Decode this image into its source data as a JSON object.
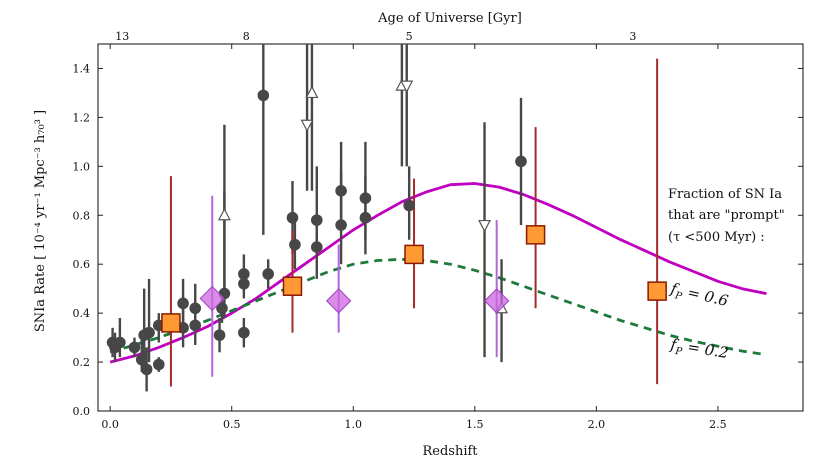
{
  "chart_data": {
    "type": "scatter",
    "xlabel": "Redshift",
    "ylabel": "SNIa Rate [ 10⁻⁴ yr⁻¹ Mpc⁻³ h₇₀³ ]",
    "top_axis_label": "Age of Universe [Gyr]",
    "xlim": [
      -0.05,
      2.85
    ],
    "ylim": [
      0.0,
      1.5
    ],
    "x_ticks": [
      0.0,
      0.5,
      1.0,
      1.5,
      2.0,
      2.5
    ],
    "x_tick_labels": [
      "0.0",
      "0.5",
      "1.0",
      "1.5",
      "2.0",
      "2.5"
    ],
    "y_ticks": [
      0.0,
      0.2,
      0.4,
      0.6,
      0.8,
      1.0,
      1.2,
      1.4
    ],
    "y_tick_labels": [
      "0.0",
      "0.2",
      "0.4",
      "0.6",
      "0.8",
      "1.0",
      "1.2",
      "1.4"
    ],
    "top_ticks": [
      {
        "z": 0.05,
        "label": "13"
      },
      {
        "z": 0.56,
        "label": "8"
      },
      {
        "z": 1.23,
        "label": "5"
      },
      {
        "z": 2.15,
        "label": "3"
      }
    ],
    "legend_note": [
      "Fraction of SN Ia",
      "that are \"prompt\"",
      "(τ <500 Myr) :"
    ],
    "colors": {
      "circles": "#474747",
      "circle_errors": "#474747",
      "triangles_edge": "#555555",
      "diamonds": "#cc66e0",
      "diamond_errors": "#b266dd",
      "squares": "#ff9933",
      "square_edge": "#8b1a00",
      "square_errors": "#a52a2a",
      "fp06_curve": "#c000c0",
      "fp02_curve": "#1e7a3a"
    },
    "series": [
      {
        "name": "literature rates (circles)",
        "marker": "circle",
        "points": [
          {
            "x": 0.01,
            "y": 0.28,
            "lo": 0.22,
            "hi": 0.34
          },
          {
            "x": 0.02,
            "y": 0.26,
            "lo": 0.2,
            "hi": 0.32
          },
          {
            "x": 0.04,
            "y": 0.28,
            "lo": 0.22,
            "hi": 0.38
          },
          {
            "x": 0.1,
            "y": 0.26,
            "lo": 0.22,
            "hi": 0.3
          },
          {
            "x": 0.13,
            "y": 0.21,
            "lo": 0.16,
            "hi": 0.3
          },
          {
            "x": 0.14,
            "y": 0.31,
            "lo": 0.2,
            "hi": 0.5
          },
          {
            "x": 0.15,
            "y": 0.17,
            "lo": 0.08,
            "hi": 0.26
          },
          {
            "x": 0.16,
            "y": 0.32,
            "lo": 0.2,
            "hi": 0.54
          },
          {
            "x": 0.2,
            "y": 0.19,
            "lo": 0.16,
            "hi": 0.22
          },
          {
            "x": 0.2,
            "y": 0.35,
            "lo": 0.28,
            "hi": 0.4
          },
          {
            "x": 0.3,
            "y": 0.44,
            "lo": 0.36,
            "hi": 0.54
          },
          {
            "x": 0.3,
            "y": 0.34,
            "lo": 0.26,
            "hi": 0.42
          },
          {
            "x": 0.35,
            "y": 0.42,
            "lo": 0.34,
            "hi": 0.52
          },
          {
            "x": 0.35,
            "y": 0.35,
            "lo": 0.27,
            "hi": 0.42
          },
          {
            "x": 0.45,
            "y": 0.31,
            "lo": 0.24,
            "hi": 0.38
          },
          {
            "x": 0.46,
            "y": 0.42,
            "lo": 0.36,
            "hi": 0.48
          },
          {
            "x": 0.47,
            "y": 0.48,
            "lo": 0.38,
            "hi": 0.9
          },
          {
            "x": 0.55,
            "y": 0.56,
            "lo": 0.5,
            "hi": 0.64
          },
          {
            "x": 0.55,
            "y": 0.52,
            "lo": 0.46,
            "hi": 0.58
          },
          {
            "x": 0.55,
            "y": 0.32,
            "lo": 0.26,
            "hi": 0.38
          },
          {
            "x": 0.63,
            "y": 1.29,
            "lo": 0.72,
            "hi": 1.5
          },
          {
            "x": 0.65,
            "y": 0.56,
            "lo": 0.5,
            "hi": 0.62
          },
          {
            "x": 0.75,
            "y": 0.79,
            "lo": 0.64,
            "hi": 0.94
          },
          {
            "x": 0.76,
            "y": 0.68,
            "lo": 0.58,
            "hi": 0.8
          },
          {
            "x": 0.85,
            "y": 0.78,
            "lo": 0.66,
            "hi": 1.0
          },
          {
            "x": 0.85,
            "y": 0.67,
            "lo": 0.54,
            "hi": 0.78
          },
          {
            "x": 0.95,
            "y": 0.9,
            "lo": 0.78,
            "hi": 1.1
          },
          {
            "x": 0.95,
            "y": 0.76,
            "lo": 0.6,
            "hi": 0.98
          },
          {
            "x": 1.05,
            "y": 0.87,
            "lo": 0.7,
            "hi": 1.1
          },
          {
            "x": 1.05,
            "y": 0.79,
            "lo": 0.64,
            "hi": 0.96
          },
          {
            "x": 1.23,
            "y": 0.84,
            "lo": 0.7,
            "hi": 1.0
          },
          {
            "x": 1.69,
            "y": 1.02,
            "lo": 0.76,
            "hi": 1.28
          }
        ]
      },
      {
        "name": "upward triangles",
        "marker": "triangle-up",
        "points": [
          {
            "x": 0.47,
            "y": 0.8,
            "lo": 0.5,
            "hi": 1.17
          },
          {
            "x": 0.83,
            "y": 1.3,
            "lo": 0.9,
            "hi": 1.5
          },
          {
            "x": 1.2,
            "y": 1.33,
            "lo": 1.0,
            "hi": 1.5
          },
          {
            "x": 1.61,
            "y": 0.42,
            "lo": 0.2,
            "hi": 0.62
          }
        ]
      },
      {
        "name": "downward triangles",
        "marker": "triangle-down",
        "points": [
          {
            "x": 0.81,
            "y": 1.17,
            "lo": 0.9,
            "hi": 1.5
          },
          {
            "x": 1.22,
            "y": 1.33,
            "lo": 1.0,
            "hi": 1.5
          },
          {
            "x": 1.54,
            "y": 0.76,
            "lo": 0.22,
            "hi": 1.18
          }
        ]
      },
      {
        "name": "diamonds",
        "marker": "diamond",
        "points": [
          {
            "x": 0.42,
            "y": 0.46,
            "lo": 0.14,
            "hi": 0.88
          },
          {
            "x": 0.94,
            "y": 0.45,
            "lo": 0.32,
            "hi": 0.68
          },
          {
            "x": 1.59,
            "y": 0.45,
            "lo": 0.22,
            "hi": 0.78
          }
        ]
      },
      {
        "name": "squares",
        "marker": "square",
        "points": [
          {
            "x": 0.25,
            "y": 0.36,
            "lo": 0.1,
            "hi": 0.96
          },
          {
            "x": 0.75,
            "y": 0.51,
            "lo": 0.32,
            "hi": 0.74
          },
          {
            "x": 1.25,
            "y": 0.64,
            "lo": 0.42,
            "hi": 0.95
          },
          {
            "x": 1.75,
            "y": 0.72,
            "lo": 0.42,
            "hi": 1.16
          },
          {
            "x": 2.25,
            "y": 0.49,
            "lo": 0.11,
            "hi": 1.44
          }
        ]
      }
    ],
    "curves": [
      {
        "name": "fP=0.6 model",
        "label_prefix": "f",
        "label_sub": "P",
        "label_suffix": " = 0.6",
        "style": "solid",
        "x": [
          0.0,
          0.1,
          0.2,
          0.3,
          0.4,
          0.5,
          0.6,
          0.7,
          0.8,
          0.9,
          1.0,
          1.1,
          1.2,
          1.3,
          1.4,
          1.5,
          1.6,
          1.7,
          1.8,
          1.9,
          2.0,
          2.1,
          2.2,
          2.3,
          2.4,
          2.5,
          2.6,
          2.7
        ],
        "y": [
          0.2,
          0.225,
          0.26,
          0.3,
          0.345,
          0.4,
          0.46,
          0.53,
          0.6,
          0.67,
          0.74,
          0.8,
          0.855,
          0.895,
          0.925,
          0.93,
          0.915,
          0.885,
          0.845,
          0.8,
          0.75,
          0.7,
          0.655,
          0.61,
          0.57,
          0.53,
          0.5,
          0.48
        ]
      },
      {
        "name": "fP=0.2 model",
        "label_prefix": "f",
        "label_sub": "P",
        "label_suffix": " = 0.2",
        "style": "dashed",
        "x": [
          0.0,
          0.1,
          0.2,
          0.3,
          0.4,
          0.5,
          0.6,
          0.7,
          0.8,
          0.9,
          1.0,
          1.1,
          1.2,
          1.3,
          1.4,
          1.5,
          1.6,
          1.7,
          1.8,
          1.9,
          2.0,
          2.1,
          2.2,
          2.3,
          2.4,
          2.5,
          2.6,
          2.7
        ],
        "y": [
          0.24,
          0.27,
          0.3,
          0.335,
          0.37,
          0.41,
          0.45,
          0.49,
          0.53,
          0.57,
          0.6,
          0.615,
          0.62,
          0.615,
          0.6,
          0.575,
          0.545,
          0.51,
          0.475,
          0.44,
          0.405,
          0.37,
          0.34,
          0.31,
          0.285,
          0.265,
          0.245,
          0.23
        ]
      }
    ]
  }
}
